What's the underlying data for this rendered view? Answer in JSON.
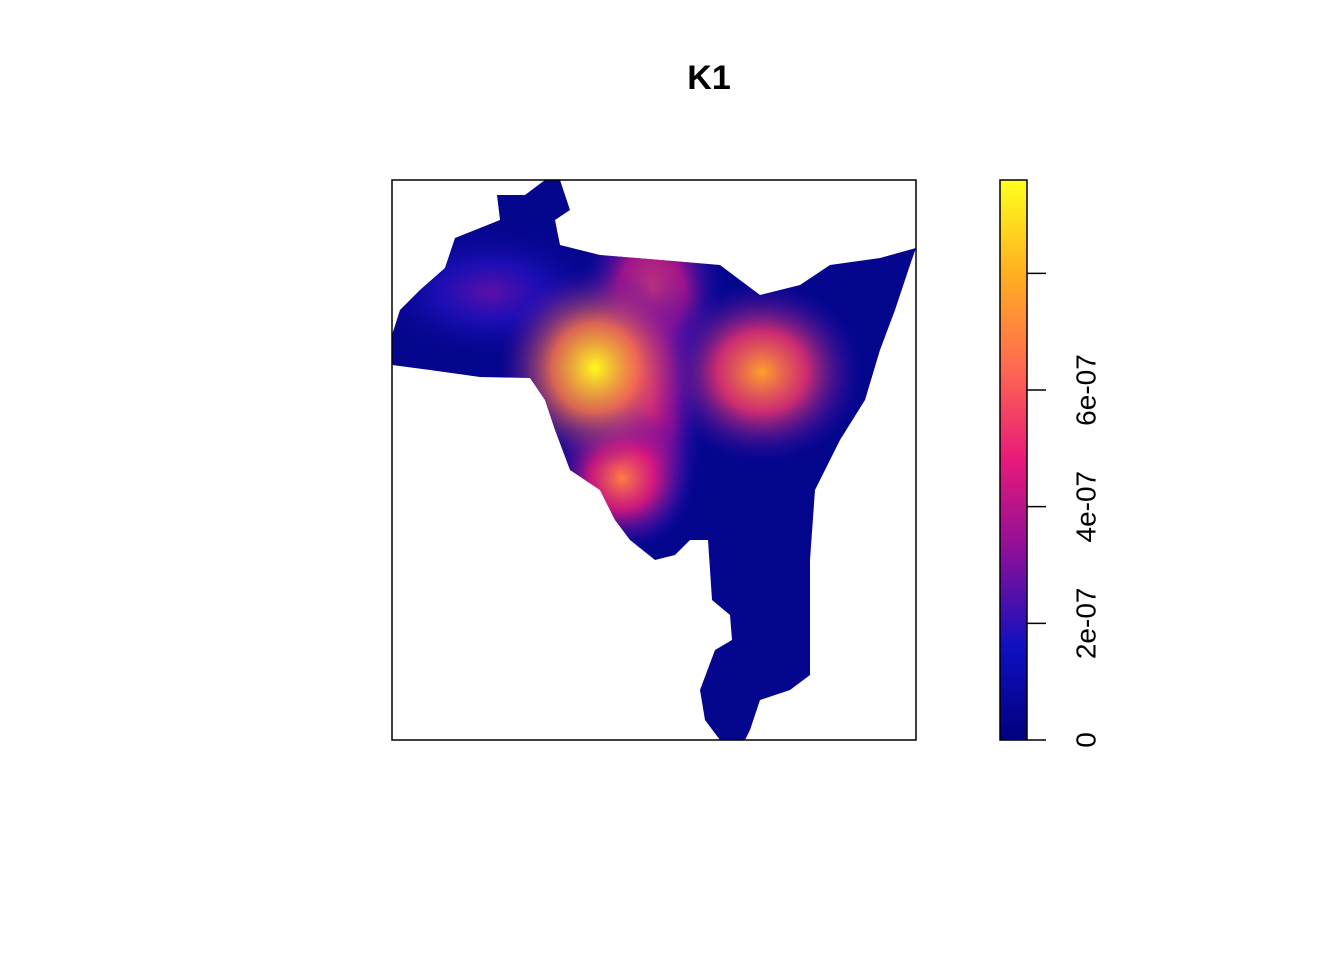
{
  "chart_data": {
    "type": "image",
    "title": "K1",
    "zlim": [
      0,
      9.6e-07
    ],
    "zticks": [
      0,
      {
        "value": 2e-07,
        "label": "2e-07"
      },
      {
        "value": 4e-07,
        "label": "4e-07"
      },
      {
        "value": 6e-07,
        "label": "6e-07"
      },
      {
        "value": 8e-07,
        "label": null
      }
    ],
    "colors": [
      "#00007f",
      "#1010c0",
      "#8a0f9a",
      "#e8197a",
      "#ff6a50",
      "#ffb020",
      "#ffff1e"
    ],
    "background_color": "#05068e",
    "peak_values": [
      9.5e-07,
      7.6e-07,
      6.8e-07,
      5.6e-07,
      2.6e-07,
      4.8e-07
    ]
  }
}
